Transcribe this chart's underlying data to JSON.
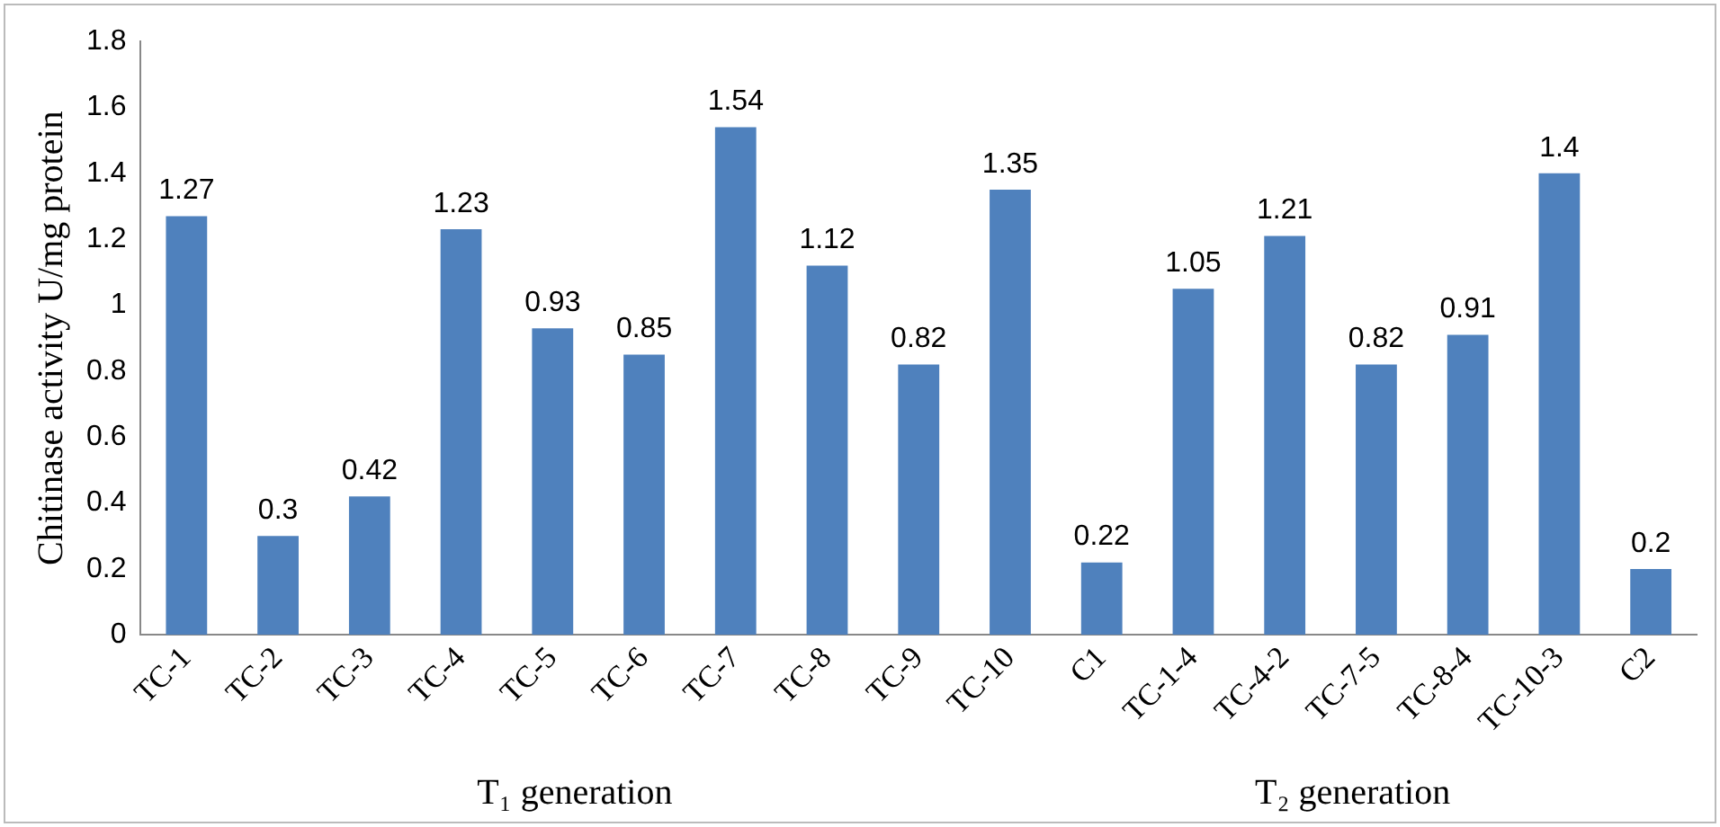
{
  "chart_data": {
    "type": "bar",
    "ylabel": "Chitinase activity U/mg protein",
    "categories": [
      "TC-1",
      "TC-2",
      "TC-3",
      "TC-4",
      "TC-5",
      "TC-6",
      "TC-7",
      "TC-8",
      "TC-9",
      "TC-10",
      "C1",
      "TC-1-4",
      "TC-4-2",
      "TC-7-5",
      "TC-8-4",
      "TC-10-3",
      "C2"
    ],
    "values": [
      1.27,
      0.3,
      0.42,
      1.23,
      0.93,
      0.85,
      1.54,
      1.12,
      0.82,
      1.35,
      0.22,
      1.05,
      1.21,
      0.82,
      0.91,
      1.4,
      0.2
    ],
    "color": "#4f81bd",
    "ylim": [
      0,
      1.8
    ],
    "yticks": [
      0,
      0.2,
      0.4,
      0.6,
      0.8,
      1,
      1.2,
      1.4,
      1.6,
      1.8
    ],
    "data_labels": true,
    "grid": false,
    "legend": false,
    "annotations": [
      "T₁ generation",
      "T₂ generation"
    ]
  }
}
